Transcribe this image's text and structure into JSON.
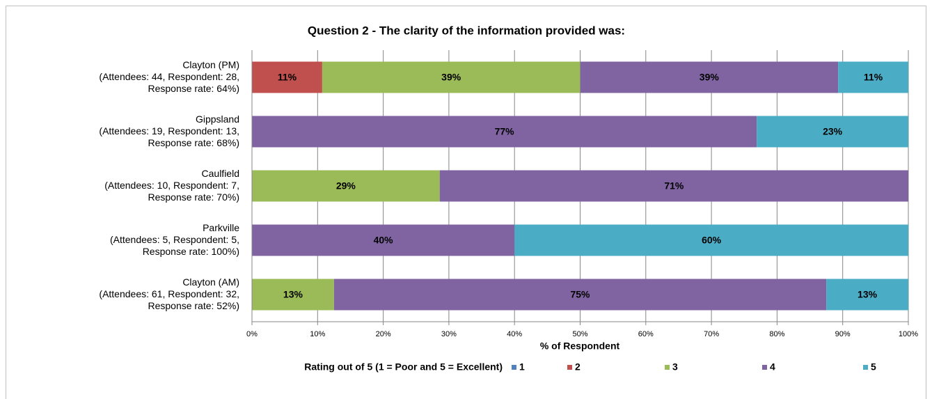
{
  "chart_data": {
    "type": "stacked_hbar",
    "title": "Question 2 - The clarity of the information provided was:",
    "x_label": "% of Respondent",
    "legend_title": "Rating out of 5 (1 = Poor and 5 = Excellent)",
    "categories": [
      "Clayton (PM)\n(Attendees: 44, Respondent: 28,\nResponse rate: 64%)",
      "Gippsland\n(Attendees: 19, Respondent: 13,\nResponse rate: 68%)",
      "Caulfield\n(Attendees: 10, Respondent: 7,\nResponse rate: 70%)",
      "Parkville\n(Attendees: 5, Respondent: 5,\nResponse rate: 100%)",
      "Clayton (AM)\n(Attendees: 61, Respondent: 32,\nResponse rate: 52%)"
    ],
    "series": [
      {
        "name": "1",
        "color": "#4f81bd",
        "label_color": "#ffffff",
        "values": [
          0,
          0,
          0,
          0,
          0
        ],
        "value_labels": [
          null,
          null,
          null,
          null,
          null
        ]
      },
      {
        "name": "2",
        "color": "#c0504d",
        "label_color": "#ffffff",
        "values": [
          10.7,
          0,
          0,
          0,
          0
        ],
        "value_labels": [
          "11%",
          null,
          null,
          null,
          null
        ]
      },
      {
        "name": "3",
        "color": "#9bbb59",
        "label_color": "#000000",
        "values": [
          39.3,
          0,
          28.6,
          0,
          12.5
        ],
        "value_labels": [
          "39%",
          null,
          "29%",
          null,
          "13%"
        ]
      },
      {
        "name": "4",
        "color": "#8064a2",
        "label_color": "#ffffff",
        "values": [
          39.3,
          76.9,
          71.4,
          40,
          75
        ],
        "value_labels": [
          "39%",
          "77%",
          "71%",
          "40%",
          "75%"
        ]
      },
      {
        "name": "5",
        "color": "#4bacc6",
        "label_color": "#000000",
        "values": [
          10.7,
          23.1,
          0,
          60,
          12.5
        ],
        "value_labels": [
          "11%",
          "23%",
          null,
          "60%",
          "13%"
        ]
      }
    ],
    "xlim": [
      0,
      100
    ],
    "xticks": [
      {
        "value": 0,
        "label": "0%"
      },
      {
        "value": 10,
        "label": "10%"
      },
      {
        "value": 20,
        "label": "20%"
      },
      {
        "value": 30,
        "label": "30%"
      },
      {
        "value": 40,
        "label": "40%"
      },
      {
        "value": 50,
        "label": "50%"
      },
      {
        "value": 60,
        "label": "60%"
      },
      {
        "value": 70,
        "label": "70%"
      },
      {
        "value": 80,
        "label": "80%"
      },
      {
        "value": 90,
        "label": "90%"
      },
      {
        "value": 100,
        "label": "100%"
      }
    ],
    "grid": true
  }
}
